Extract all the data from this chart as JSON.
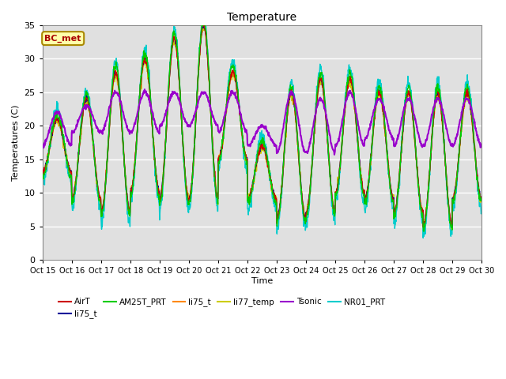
{
  "title": "Temperature",
  "xlabel": "Time",
  "ylabel": "Temperatures (C)",
  "ylim": [
    0,
    35
  ],
  "bg_color": "#e0e0e0",
  "annotation": "BC_met",
  "x_tick_labels": [
    "Oct 15",
    "Oct 16",
    "Oct 17",
    "Oct 18",
    "Oct 19",
    "Oct 20",
    "Oct 21",
    "Oct 22",
    "Oct 23",
    "Oct 24",
    "Oct 25",
    "Oct 26",
    "Oct 27",
    "Oct 28",
    "Oct 29",
    "Oct 30"
  ],
  "series": [
    {
      "name": "AirT",
      "color": "#cc0000",
      "lw": 1.0,
      "zorder": 5
    },
    {
      "name": "li75_t",
      "color": "#000099",
      "lw": 1.0,
      "zorder": 4
    },
    {
      "name": "AM25T_PRT",
      "color": "#00cc00",
      "lw": 1.0,
      "zorder": 6
    },
    {
      "name": "li75_t",
      "color": "#ff8800",
      "lw": 1.0,
      "zorder": 3
    },
    {
      "name": "li77_temp",
      "color": "#cccc00",
      "lw": 1.0,
      "zorder": 2
    },
    {
      "name": "Tsonic",
      "color": "#9900cc",
      "lw": 1.5,
      "zorder": 7
    },
    {
      "name": "NR01_PRT",
      "color": "#00cccc",
      "lw": 1.0,
      "zorder": 1
    }
  ],
  "legend": [
    {
      "name": "AirT",
      "color": "#cc0000"
    },
    {
      "name": "li75_t",
      "color": "#000099"
    },
    {
      "name": "AM25T_PRT",
      "color": "#00cc00"
    },
    {
      "name": "li75_t",
      "color": "#ff8800"
    },
    {
      "name": "li77_temp",
      "color": "#cccc00"
    },
    {
      "name": "Tsonic",
      "color": "#9900cc"
    },
    {
      "name": "NR01_PRT",
      "color": "#00cccc"
    }
  ],
  "peaks": [
    21,
    24,
    28,
    30,
    33,
    35,
    28,
    17,
    25,
    27,
    27,
    25,
    25,
    25,
    25
  ],
  "troughs": [
    13,
    9,
    7,
    10,
    9,
    9,
    15,
    9,
    6,
    7,
    10,
    9,
    7,
    5,
    9
  ],
  "tsonic_peaks": [
    22,
    23,
    25,
    25,
    25,
    25,
    25,
    20,
    25,
    24,
    25,
    24,
    24,
    24,
    24
  ],
  "tsonic_troughs": [
    17,
    19,
    19,
    19,
    20,
    20,
    19,
    17,
    16,
    16,
    17,
    18,
    17,
    17,
    17
  ]
}
